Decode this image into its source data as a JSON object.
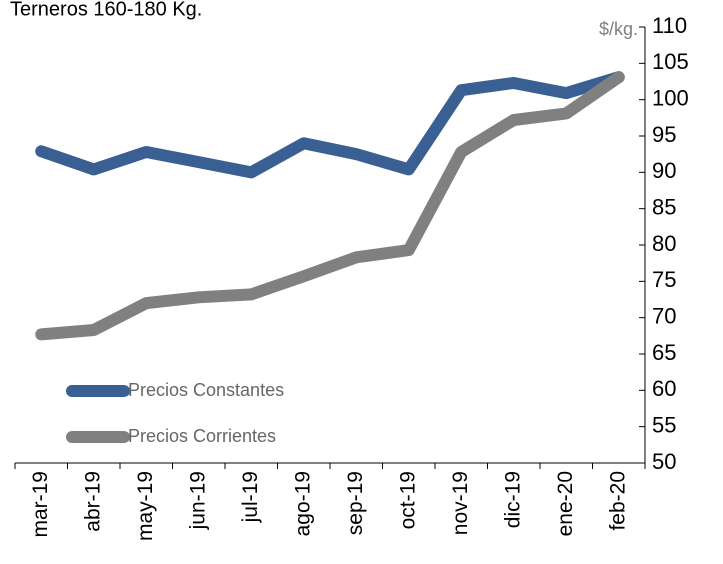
{
  "chart_data": {
    "type": "line",
    "title": "Terneros 160-180 Kg.",
    "y_axis_label": "$/kg.",
    "categories": [
      "mar-19",
      "abr-19",
      "may-19",
      "jun-19",
      "jul-19",
      "ago-19",
      "sep-19",
      "oct-19",
      "nov-19",
      "dic-19",
      "ene-20",
      "feb-20"
    ],
    "series": [
      {
        "name": "Precios Constantes",
        "color": "#3a5f93",
        "values": [
          92.9,
          90.4,
          92.8,
          91.4,
          90.0,
          94.0,
          92.5,
          90.4,
          101.3,
          102.3,
          100.9,
          103.1
        ]
      },
      {
        "name": "Precios Corrientes",
        "color": "#808080",
        "values": [
          67.7,
          68.3,
          72.0,
          72.8,
          73.2,
          75.7,
          78.3,
          79.3,
          92.8,
          97.2,
          98.1,
          103.1
        ]
      }
    ],
    "ylim": [
      50,
      110
    ],
    "yticks": [
      50,
      55,
      60,
      65,
      70,
      75,
      80,
      85,
      90,
      95,
      100,
      105,
      110
    ],
    "grid": false,
    "legend": "lower left"
  }
}
